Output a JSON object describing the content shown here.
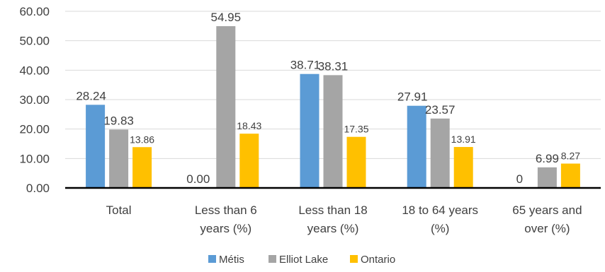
{
  "chart_data": {
    "type": "bar",
    "title": "",
    "xlabel": "",
    "ylabel": "",
    "ylim": [
      0,
      60
    ],
    "yticks": [
      "0.00",
      "10.00",
      "20.00",
      "30.00",
      "40.00",
      "50.00",
      "60.00"
    ],
    "grid": true,
    "legend_position": "bottom",
    "categories": [
      [
        "Total"
      ],
      [
        "Less than 6",
        "years (%)"
      ],
      [
        "Less than 18",
        "years (%)"
      ],
      [
        "18 to 64 years",
        "(%)"
      ],
      [
        "65 years and",
        "over (%)"
      ]
    ],
    "series": [
      {
        "name": "Métis",
        "color": "#5B9BD5",
        "values": [
          28.24,
          0,
          38.71,
          27.91,
          0
        ],
        "labels": [
          "28.24",
          "0.00",
          "38.71",
          "27.91",
          "0"
        ]
      },
      {
        "name": "Elliot Lake",
        "color": "#A5A5A5",
        "values": [
          19.83,
          54.95,
          38.31,
          23.57,
          6.99
        ],
        "labels": [
          "19.83",
          "54.95",
          "38.31",
          "23.57",
          "6.99"
        ]
      },
      {
        "name": "Ontario",
        "color": "#FFC000",
        "values": [
          13.86,
          18.43,
          17.35,
          13.91,
          8.27
        ],
        "labels": [
          "13.86",
          "18.43",
          "17.35",
          "13.91",
          "8.27"
        ]
      }
    ]
  }
}
